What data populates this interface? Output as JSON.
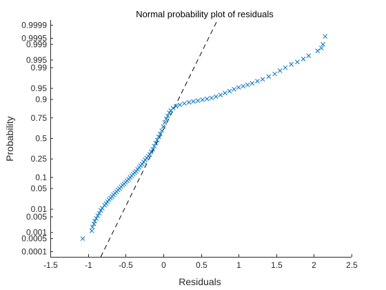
{
  "chart_data": {
    "type": "scatter",
    "title": "Normal probability plot of residuals",
    "xlabel": "Residuals",
    "ylabel": "Probability",
    "xlim": [
      -1.5,
      2.5
    ],
    "xticks": [
      -1.5,
      -1,
      -0.5,
      0,
      0.5,
      1,
      1.5,
      2,
      2.5
    ],
    "xtick_labels": [
      "-1.5",
      "-1",
      "-0.5",
      "0",
      "0.5",
      "1",
      "1.5",
      "2",
      "2.5"
    ],
    "y_scale": "normal-probability",
    "ylim": [
      5e-05,
      0.99995
    ],
    "yticks": [
      0.0001,
      0.0005,
      0.001,
      0.005,
      0.01,
      0.05,
      0.1,
      0.25,
      0.5,
      0.75,
      0.9,
      0.95,
      0.99,
      0.995,
      0.999,
      0.9995,
      0.9999
    ],
    "ytick_labels": [
      "0.0001",
      "0.0005",
      "0.001",
      "0.005",
      "0.01",
      "0.05",
      "0.1",
      "0.25",
      "0.5",
      "0.75",
      "0.9",
      "0.95",
      "0.99",
      "0.995",
      "0.999",
      "0.9995",
      "0.9999"
    ],
    "grid": false,
    "marker": "x",
    "marker_color": "#0072BD",
    "reference_line": {
      "style": "dashed",
      "color": "#000000",
      "points": [
        [
          -0.83,
          5e-05
        ],
        [
          0.72,
          0.99995
        ]
      ]
    },
    "series": [
      {
        "values": [
          [
            -1.07,
            0.0005
          ],
          [
            -0.95,
            0.0012
          ],
          [
            -0.94,
            0.0018
          ],
          [
            -0.92,
            0.0025
          ],
          [
            -0.91,
            0.0033
          ],
          [
            -0.89,
            0.0043
          ],
          [
            -0.87,
            0.0055
          ],
          [
            -0.85,
            0.007
          ],
          [
            -0.83,
            0.009
          ],
          [
            -0.81,
            0.011
          ],
          [
            -0.78,
            0.014
          ],
          [
            -0.76,
            0.016
          ],
          [
            -0.74,
            0.019
          ],
          [
            -0.72,
            0.022
          ],
          [
            -0.7,
            0.025
          ],
          [
            -0.68,
            0.028
          ],
          [
            -0.66,
            0.032
          ],
          [
            -0.64,
            0.036
          ],
          [
            -0.62,
            0.04
          ],
          [
            -0.6,
            0.045
          ],
          [
            -0.58,
            0.05
          ],
          [
            -0.56,
            0.056
          ],
          [
            -0.54,
            0.062
          ],
          [
            -0.52,
            0.068
          ],
          [
            -0.5,
            0.075
          ],
          [
            -0.48,
            0.082
          ],
          [
            -0.46,
            0.09
          ],
          [
            -0.44,
            0.1
          ],
          [
            -0.42,
            0.11
          ],
          [
            -0.4,
            0.12
          ],
          [
            -0.38,
            0.13
          ],
          [
            -0.36,
            0.14
          ],
          [
            -0.34,
            0.155
          ],
          [
            -0.32,
            0.17
          ],
          [
            -0.3,
            0.185
          ],
          [
            -0.28,
            0.2
          ],
          [
            -0.26,
            0.22
          ],
          [
            -0.24,
            0.24
          ],
          [
            -0.22,
            0.26
          ],
          [
            -0.2,
            0.28
          ],
          [
            -0.18,
            0.3
          ],
          [
            -0.16,
            0.33
          ],
          [
            -0.14,
            0.36
          ],
          [
            -0.12,
            0.4
          ],
          [
            -0.1,
            0.44
          ],
          [
            -0.08,
            0.48
          ],
          [
            -0.06,
            0.52
          ],
          [
            -0.04,
            0.56
          ],
          [
            -0.02,
            0.6
          ],
          [
            0.0,
            0.65
          ],
          [
            0.02,
            0.7
          ],
          [
            0.04,
            0.74
          ],
          [
            0.06,
            0.77
          ],
          [
            0.08,
            0.8
          ],
          [
            0.1,
            0.82
          ],
          [
            0.13,
            0.84
          ],
          [
            0.17,
            0.855
          ],
          [
            0.22,
            0.865
          ],
          [
            0.28,
            0.875
          ],
          [
            0.34,
            0.882
          ],
          [
            0.4,
            0.888
          ],
          [
            0.46,
            0.893
          ],
          [
            0.52,
            0.898
          ],
          [
            0.58,
            0.903
          ],
          [
            0.64,
            0.908
          ],
          [
            0.7,
            0.915
          ],
          [
            0.76,
            0.923
          ],
          [
            0.82,
            0.932
          ],
          [
            0.88,
            0.94
          ],
          [
            0.94,
            0.947
          ],
          [
            1.0,
            0.953
          ],
          [
            1.06,
            0.957
          ],
          [
            1.12,
            0.961
          ],
          [
            1.18,
            0.965
          ],
          [
            1.25,
            0.97
          ],
          [
            1.32,
            0.974
          ],
          [
            1.4,
            0.979
          ],
          [
            1.48,
            0.983
          ],
          [
            1.55,
            0.987
          ],
          [
            1.62,
            0.99
          ],
          [
            1.7,
            0.9925
          ],
          [
            1.78,
            0.994
          ],
          [
            1.86,
            0.9955
          ],
          [
            1.93,
            0.9967
          ],
          [
            2.05,
            0.998
          ],
          [
            2.1,
            0.9985
          ],
          [
            2.12,
            0.999
          ],
          [
            2.15,
            0.9996
          ]
        ]
      }
    ]
  }
}
